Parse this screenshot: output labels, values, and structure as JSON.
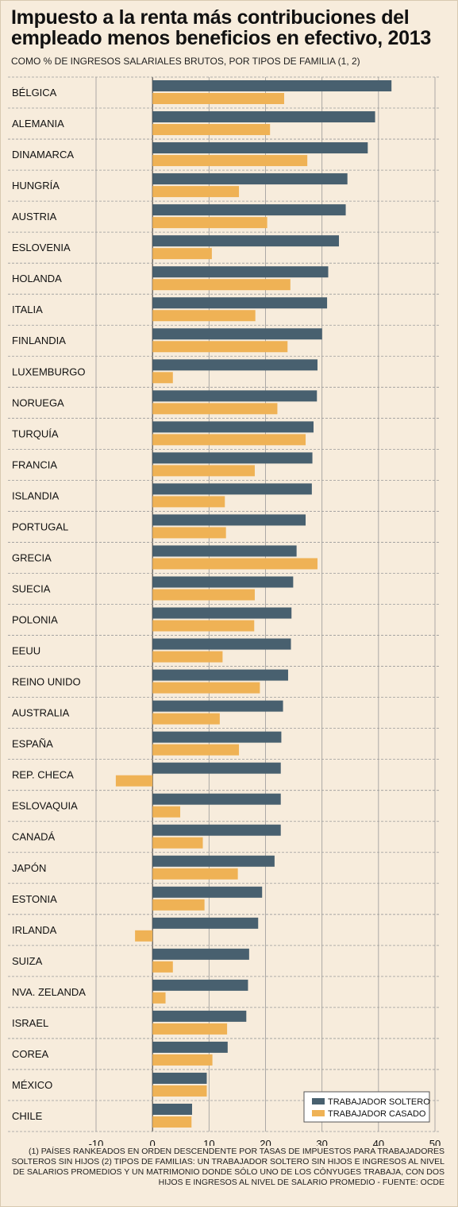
{
  "title": "Impuesto a la renta más contribuciones del empleado menos beneficios en efectivo, 2013",
  "subtitle": "COMO % DE INGRESOS SALARIALES BRUTOS, POR TIPOS DE FAMILIA (1, 2)",
  "notes": [
    "(1) PAÍSES RANKEADOS EN ORDEN DESCENDENTE POR TASAS DE IMPUESTOS PARA TRABAJADORES SOLTEROS SIN HIJOS (2) TIPOS DE FAMILIAS: UN TRABAJADOR SOLTERO SIN HIJOS E INGRESOS AL NIVEL DE SALARIOS PROMEDIOS Y UN MATRIMONIO DONDE SÓLO UNO DE LOS CÓNYUGES TRABAJA, CON DOS HIJOS E INGRESOS AL NIVEL DE SALARIO PROMEDIO - FUENTE: OCDE"
  ],
  "colors": {
    "soltero": "#48606f",
    "casado": "#efb255",
    "background": "#f7ecdc"
  },
  "chart_data": {
    "type": "bar",
    "orientation": "horizontal",
    "categories": [
      "BÉLGICA",
      "ALEMANIA",
      "DINAMARCA",
      "HUNGRÍA",
      "AUSTRIA",
      "ESLOVENIA",
      "HOLANDA",
      "ITALIA",
      "FINLANDIA",
      "LUXEMBURGO",
      "NORUEGA",
      "TURQUÍA",
      "FRANCIA",
      "ISLANDIA",
      "PORTUGAL",
      "GRECIA",
      "SUECIA",
      "POLONIA",
      "EEUU",
      "REINO UNIDO",
      "AUSTRALIA",
      "ESPAÑA",
      "REP. CHECA",
      "ESLOVAQUIA",
      "CANADÁ",
      "JAPÓN",
      "ESTONIA",
      "IRLANDA",
      "SUIZA",
      "NVA. ZELANDA",
      "ISRAEL",
      "COREA",
      "MÉXICO",
      "CHILE"
    ],
    "series": [
      {
        "name": "TRABAJADOR SOLTERO",
        "color": "#48606f",
        "values": [
          42.3,
          39.4,
          38.1,
          34.5,
          34.2,
          33.0,
          31.1,
          30.9,
          30.0,
          29.2,
          29.1,
          28.5,
          28.3,
          28.2,
          27.1,
          25.5,
          24.9,
          24.6,
          24.5,
          24.0,
          23.1,
          22.8,
          22.7,
          22.7,
          22.7,
          21.6,
          19.4,
          18.7,
          17.1,
          16.9,
          16.6,
          13.3,
          9.6,
          7.0
        ]
      },
      {
        "name": "TRABAJADOR CASADO",
        "color": "#efb255",
        "values": [
          23.3,
          20.8,
          27.4,
          15.3,
          20.3,
          10.5,
          24.4,
          18.2,
          23.9,
          3.6,
          22.1,
          27.1,
          18.1,
          12.8,
          13.0,
          29.2,
          18.1,
          18.0,
          12.4,
          19.0,
          11.9,
          15.3,
          -6.5,
          4.9,
          8.9,
          15.1,
          9.2,
          -3.1,
          3.6,
          2.3,
          13.2,
          10.6,
          9.6,
          6.9
        ]
      }
    ],
    "xlim": [
      -10,
      50
    ],
    "xticks": [
      -10,
      0,
      10,
      20,
      30,
      40,
      50
    ],
    "grid": true,
    "legend": "bottom-right"
  }
}
